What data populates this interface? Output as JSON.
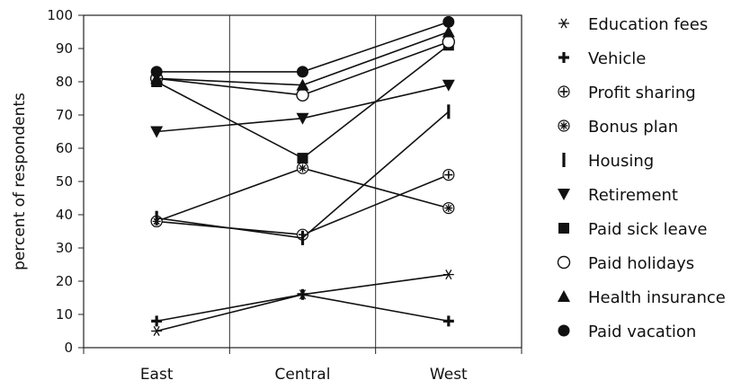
{
  "chart_data": {
    "type": "line",
    "title": "",
    "xlabel": "",
    "ylabel": "percent of respondents",
    "categories": [
      "East",
      "Central",
      "West"
    ],
    "ylim": [
      0,
      100
    ],
    "yticks": [
      0,
      10,
      20,
      30,
      40,
      50,
      60,
      70,
      80,
      90,
      100
    ],
    "grid": "vertical lines at category boundaries",
    "legend_position": "right",
    "series": [
      {
        "name": "Education fees",
        "values": [
          5,
          16,
          22
        ],
        "marker": "asterisk"
      },
      {
        "name": "Vehicle",
        "values": [
          8,
          16,
          8
        ],
        "marker": "plus"
      },
      {
        "name": "Profit sharing",
        "values": [
          38,
          34,
          52
        ],
        "marker": "circled-plus"
      },
      {
        "name": "Bonus plan",
        "values": [
          38,
          54,
          42
        ],
        "marker": "circled-star"
      },
      {
        "name": "Housing",
        "values": [
          39,
          33,
          71
        ],
        "marker": "vertical-bar"
      },
      {
        "name": "Retirement",
        "values": [
          65,
          69,
          79
        ],
        "marker": "triangle-down"
      },
      {
        "name": "Paid sick leave",
        "values": [
          80,
          57,
          91
        ],
        "marker": "square"
      },
      {
        "name": "Paid holidays",
        "values": [
          81,
          76,
          92
        ],
        "marker": "circle-open"
      },
      {
        "name": "Health insurance",
        "values": [
          81,
          79,
          95
        ],
        "marker": "triangle-up"
      },
      {
        "name": "Paid vacation",
        "values": [
          83,
          83,
          98
        ],
        "marker": "circle-filled"
      }
    ]
  }
}
